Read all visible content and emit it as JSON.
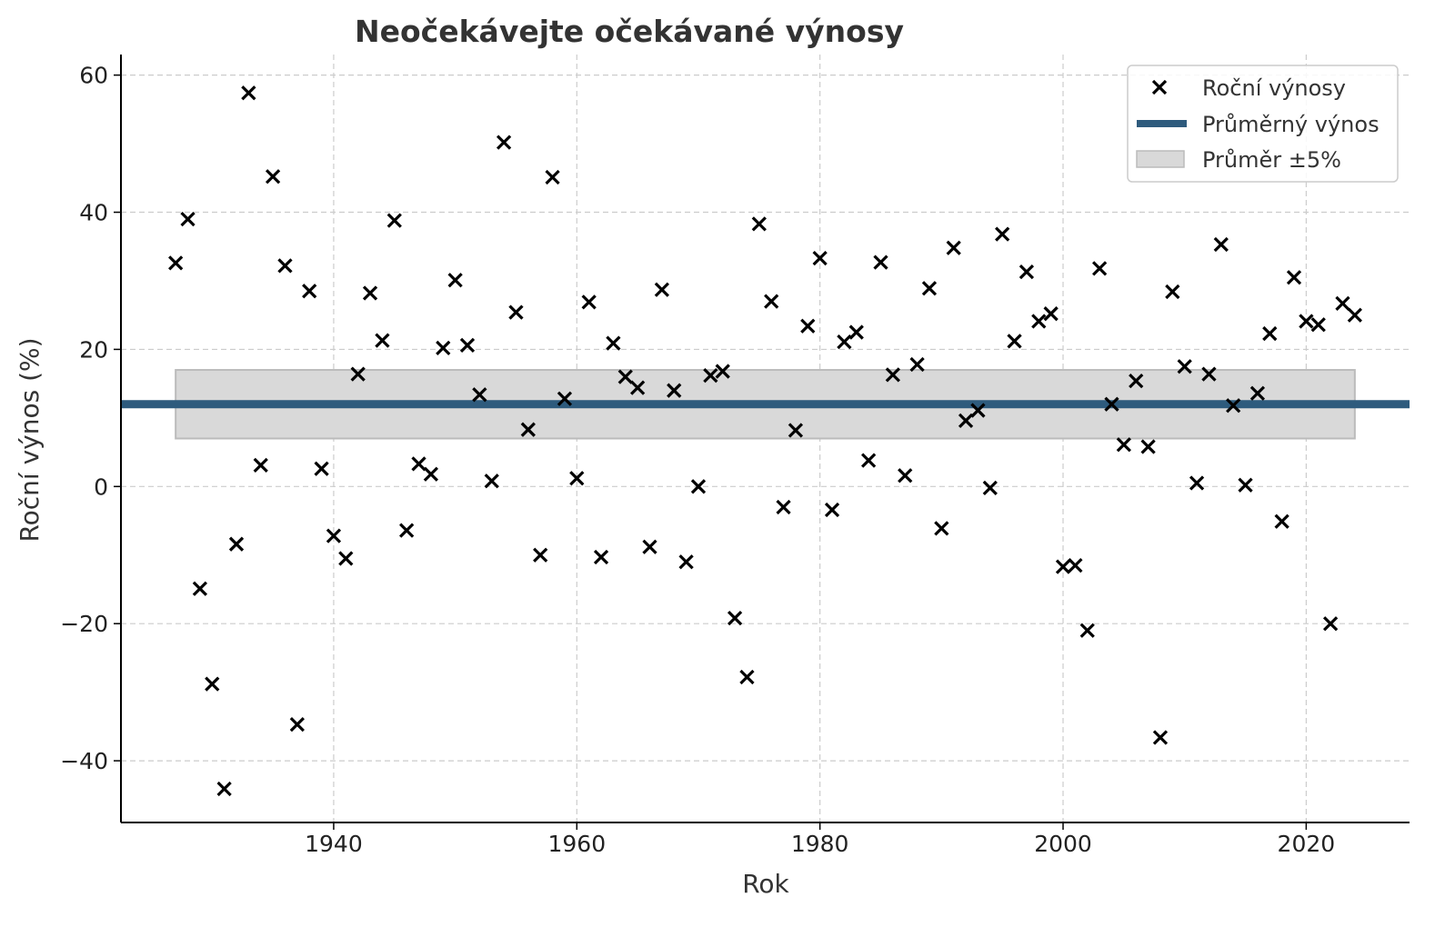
{
  "chart_data": {
    "type": "scatter",
    "title": "Neočekávejte očekávané výnosy",
    "xlabel": "Rok",
    "ylabel": "Roční výnos (%)",
    "xlim": [
      1922.5,
      2028.5
    ],
    "ylim": [
      -49,
      63
    ],
    "x_ticks": [
      1940,
      1960,
      1980,
      2000,
      2020
    ],
    "y_ticks": [
      -40,
      -20,
      0,
      20,
      40,
      60
    ],
    "y_tick_labels": [
      "−40",
      "−20",
      "0",
      "20",
      "40",
      "60"
    ],
    "grid": true,
    "legend_position": "top-right",
    "series": [
      {
        "name": "Roční výnosy",
        "marker": "x",
        "color": "#000000",
        "points": [
          [
            1927,
            32.6
          ],
          [
            1928,
            39.0
          ],
          [
            1929,
            -14.9
          ],
          [
            1930,
            -28.8
          ],
          [
            1931,
            -44.1
          ],
          [
            1932,
            -8.4
          ],
          [
            1933,
            57.4
          ],
          [
            1934,
            3.1
          ],
          [
            1935,
            45.2
          ],
          [
            1936,
            32.2
          ],
          [
            1937,
            -34.7
          ],
          [
            1938,
            28.5
          ],
          [
            1939,
            2.6
          ],
          [
            1940,
            -7.2
          ],
          [
            1941,
            -10.5
          ],
          [
            1942,
            16.4
          ],
          [
            1943,
            28.2
          ],
          [
            1944,
            21.3
          ],
          [
            1945,
            38.8
          ],
          [
            1946,
            -6.4
          ],
          [
            1947,
            3.3
          ],
          [
            1948,
            1.8
          ],
          [
            1949,
            20.2
          ],
          [
            1950,
            30.1
          ],
          [
            1951,
            20.6
          ],
          [
            1952,
            13.4
          ],
          [
            1953,
            0.8
          ],
          [
            1954,
            50.2
          ],
          [
            1955,
            25.4
          ],
          [
            1956,
            8.3
          ],
          [
            1957,
            -10.0
          ],
          [
            1958,
            45.1
          ],
          [
            1959,
            12.8
          ],
          [
            1960,
            1.2
          ],
          [
            1961,
            26.9
          ],
          [
            1962,
            -10.3
          ],
          [
            1963,
            20.9
          ],
          [
            1964,
            16.0
          ],
          [
            1965,
            14.4
          ],
          [
            1966,
            -8.8
          ],
          [
            1967,
            28.7
          ],
          [
            1968,
            14.0
          ],
          [
            1969,
            -11.0
          ],
          [
            1970,
            0.0
          ],
          [
            1971,
            16.2
          ],
          [
            1972,
            16.8
          ],
          [
            1973,
            -19.2
          ],
          [
            1974,
            -27.8
          ],
          [
            1975,
            38.3
          ],
          [
            1976,
            27.0
          ],
          [
            1977,
            -3.0
          ],
          [
            1978,
            8.2
          ],
          [
            1979,
            23.4
          ],
          [
            1980,
            33.3
          ],
          [
            1981,
            -3.4
          ],
          [
            1982,
            21.1
          ],
          [
            1983,
            22.5
          ],
          [
            1984,
            3.8
          ],
          [
            1985,
            32.7
          ],
          [
            1986,
            16.3
          ],
          [
            1987,
            1.6
          ],
          [
            1988,
            17.8
          ],
          [
            1989,
            28.9
          ],
          [
            1990,
            -6.1
          ],
          [
            1991,
            34.8
          ],
          [
            1992,
            9.6
          ],
          [
            1993,
            11.1
          ],
          [
            1994,
            -0.2
          ],
          [
            1995,
            36.8
          ],
          [
            1996,
            21.2
          ],
          [
            1997,
            31.3
          ],
          [
            1998,
            24.1
          ],
          [
            1999,
            25.2
          ],
          [
            2000,
            -11.7
          ],
          [
            2001,
            -11.5
          ],
          [
            2002,
            -21.0
          ],
          [
            2003,
            31.8
          ],
          [
            2004,
            12.0
          ],
          [
            2005,
            6.1
          ],
          [
            2006,
            15.4
          ],
          [
            2007,
            5.8
          ],
          [
            2008,
            -36.6
          ],
          [
            2009,
            28.4
          ],
          [
            2010,
            17.5
          ],
          [
            2011,
            0.5
          ],
          [
            2012,
            16.4
          ],
          [
            2013,
            35.3
          ],
          [
            2014,
            11.8
          ],
          [
            2015,
            0.2
          ],
          [
            2016,
            13.6
          ],
          [
            2017,
            22.3
          ],
          [
            2018,
            -5.1
          ],
          [
            2019,
            30.5
          ],
          [
            2020,
            24.1
          ],
          [
            2021,
            23.6
          ],
          [
            2022,
            -20.0
          ],
          [
            2023,
            26.7
          ],
          [
            2024,
            25.0
          ]
        ]
      },
      {
        "name": "Průměrný výnos",
        "type": "hline",
        "color": "#2e5b7d",
        "y": 12.0
      },
      {
        "name": "Průměr ±5%",
        "type": "band",
        "color": "#cfcfcf",
        "x_range": [
          1927,
          2024
        ],
        "y_range": [
          7.0,
          17.0
        ]
      }
    ]
  }
}
